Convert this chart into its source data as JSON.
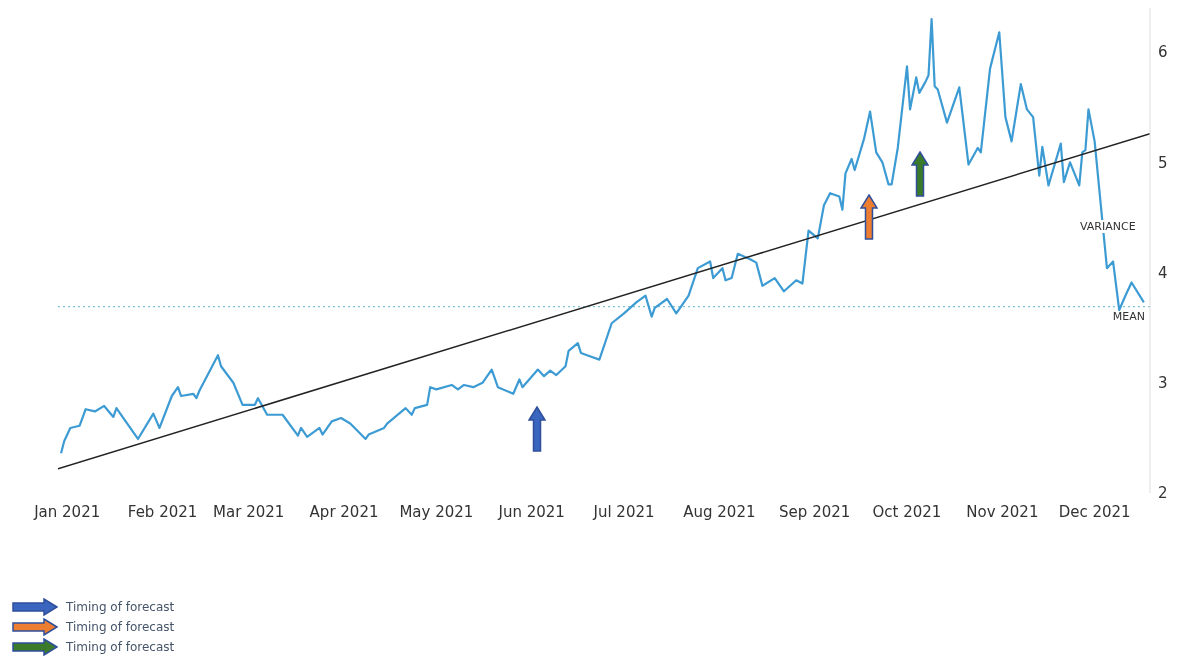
{
  "chart_data": {
    "type": "line",
    "xlim": [
      "2020-12-29",
      "2021-12-19"
    ],
    "xticks": [
      {
        "value": "2021-01-01",
        "label": "Jan 2021"
      },
      {
        "value": "2021-02-01",
        "label": "Feb 2021"
      },
      {
        "value": "2021-03-01",
        "label": "Mar 2021"
      },
      {
        "value": "2021-04-01",
        "label": "Apr 2021"
      },
      {
        "value": "2021-05-01",
        "label": "May 2021"
      },
      {
        "value": "2021-06-01",
        "label": "Jun 2021"
      },
      {
        "value": "2021-07-01",
        "label": "Jul 2021"
      },
      {
        "value": "2021-08-01",
        "label": "Aug 2021"
      },
      {
        "value": "2021-09-01",
        "label": "Sep 2021"
      },
      {
        "value": "2021-10-01",
        "label": "Oct 2021"
      },
      {
        "value": "2021-11-01",
        "label": "Nov 2021"
      },
      {
        "value": "2021-12-01",
        "label": "Dec 2021"
      }
    ],
    "ylim": [
      2,
      6.4
    ],
    "yticks": [
      2,
      3,
      4,
      5,
      6
    ],
    "series": [
      {
        "color": "#3d9bd4",
        "x": [
          "2020-12-30",
          "2020-12-31",
          "2021-01-02",
          "2021-01-05",
          "2021-01-07",
          "2021-01-10",
          "2021-01-13",
          "2021-01-16",
          "2021-01-17",
          "2021-01-20",
          "2021-01-24",
          "2021-01-29",
          "2021-01-31",
          "2021-02-04",
          "2021-02-06",
          "2021-02-07",
          "2021-02-11",
          "2021-02-12",
          "2021-02-13",
          "2021-02-19",
          "2021-02-20",
          "2021-02-24",
          "2021-02-27",
          "2021-03-03",
          "2021-03-04",
          "2021-03-07",
          "2021-03-12",
          "2021-03-17",
          "2021-03-18",
          "2021-03-20",
          "2021-03-24",
          "2021-03-25",
          "2021-03-28",
          "2021-03-31",
          "2021-04-03",
          "2021-04-08",
          "2021-04-09",
          "2021-04-14",
          "2021-04-15",
          "2021-04-21",
          "2021-04-23",
          "2021-04-24",
          "2021-04-28",
          "2021-04-29",
          "2021-05-01",
          "2021-05-06",
          "2021-05-08",
          "2021-05-10",
          "2021-05-13",
          "2021-05-16",
          "2021-05-19",
          "2021-05-21",
          "2021-05-26",
          "2021-05-28",
          "2021-05-29",
          "2021-06-03",
          "2021-06-05",
          "2021-06-07",
          "2021-06-09",
          "2021-06-12",
          "2021-06-13",
          "2021-06-16",
          "2021-06-17",
          "2021-06-19",
          "2021-06-23",
          "2021-06-27",
          "2021-07-01",
          "2021-07-05",
          "2021-07-08",
          "2021-07-10",
          "2021-07-11",
          "2021-07-15",
          "2021-07-18",
          "2021-07-22",
          "2021-07-25",
          "2021-07-29",
          "2021-07-30",
          "2021-08-02",
          "2021-08-03",
          "2021-08-05",
          "2021-08-07",
          "2021-08-11",
          "2021-08-13",
          "2021-08-15",
          "2021-08-19",
          "2021-08-22",
          "2021-08-26",
          "2021-08-28",
          "2021-08-30",
          "2021-09-02",
          "2021-09-04",
          "2021-09-06",
          "2021-09-09",
          "2021-09-10",
          "2021-09-11",
          "2021-09-13",
          "2021-09-14",
          "2021-09-17",
          "2021-09-19",
          "2021-09-21",
          "2021-09-23",
          "2021-09-25",
          "2021-09-26",
          "2021-09-28",
          "2021-10-01",
          "2021-10-02",
          "2021-10-04",
          "2021-10-05",
          "2021-10-07",
          "2021-10-08",
          "2021-10-09",
          "2021-10-10",
          "2021-10-11",
          "2021-10-14",
          "2021-10-18",
          "2021-10-21",
          "2021-10-24",
          "2021-10-25",
          "2021-10-28",
          "2021-10-31",
          "2021-11-02",
          "2021-11-04",
          "2021-11-07",
          "2021-11-09",
          "2021-11-11",
          "2021-11-13",
          "2021-11-14",
          "2021-11-16",
          "2021-11-20",
          "2021-11-21",
          "2021-11-23",
          "2021-11-26",
          "2021-11-27",
          "2021-11-28",
          "2021-11-29",
          "2021-12-01",
          "2021-12-05",
          "2021-12-07",
          "2021-12-09",
          "2021-12-11",
          "2021-12-13",
          "2021-12-17"
        ],
        "values": [
          2.36,
          2.47,
          2.59,
          2.61,
          2.76,
          2.74,
          2.79,
          2.69,
          2.77,
          2.65,
          2.49,
          2.72,
          2.59,
          2.88,
          2.96,
          2.88,
          2.9,
          2.86,
          2.93,
          3.25,
          3.15,
          3.0,
          2.8,
          2.8,
          2.86,
          2.71,
          2.71,
          2.52,
          2.59,
          2.51,
          2.59,
          2.53,
          2.65,
          2.68,
          2.63,
          2.49,
          2.53,
          2.59,
          2.63,
          2.77,
          2.71,
          2.77,
          2.8,
          2.96,
          2.94,
          2.98,
          2.94,
          2.98,
          2.96,
          3.0,
          3.12,
          2.96,
          2.9,
          3.03,
          2.96,
          3.12,
          3.06,
          3.11,
          3.07,
          3.15,
          3.29,
          3.36,
          3.27,
          3.25,
          3.21,
          3.54,
          3.63,
          3.73,
          3.79,
          3.6,
          3.68,
          3.76,
          3.63,
          3.79,
          4.04,
          4.1,
          3.95,
          4.04,
          3.93,
          3.95,
          4.17,
          4.12,
          4.09,
          3.88,
          3.95,
          3.83,
          3.93,
          3.9,
          4.38,
          4.31,
          4.61,
          4.72,
          4.69,
          4.57,
          4.9,
          5.03,
          4.93,
          5.21,
          5.46,
          5.09,
          5.0,
          4.8,
          4.8,
          5.13,
          5.87,
          5.48,
          5.77,
          5.63,
          5.73,
          5.79,
          6.3,
          5.69,
          5.66,
          5.36,
          5.68,
          4.98,
          5.13,
          5.09,
          5.85,
          6.18,
          5.41,
          5.19,
          5.71,
          5.48,
          5.41,
          4.88,
          5.14,
          4.79,
          5.17,
          4.82,
          5.0,
          4.79,
          5.09,
          5.11,
          5.48,
          5.19,
          4.04,
          4.1,
          3.66,
          3.79,
          3.91,
          3.73
        ]
      },
      {
        "type": "line",
        "color": "#222222",
        "x": [
          "2020-12-29",
          "2021-12-19"
        ],
        "values": [
          2.22,
          5.26
        ]
      }
    ],
    "ref_lines": [
      {
        "axis": "y",
        "value": 3.69,
        "label": "MEAN",
        "color": "#7fc4d0",
        "line_style": "dotted"
      }
    ],
    "annotations": [
      "VARIANCE",
      "Timing of forecast",
      "Timing of forecast",
      "Timing of forecast"
    ]
  }
}
